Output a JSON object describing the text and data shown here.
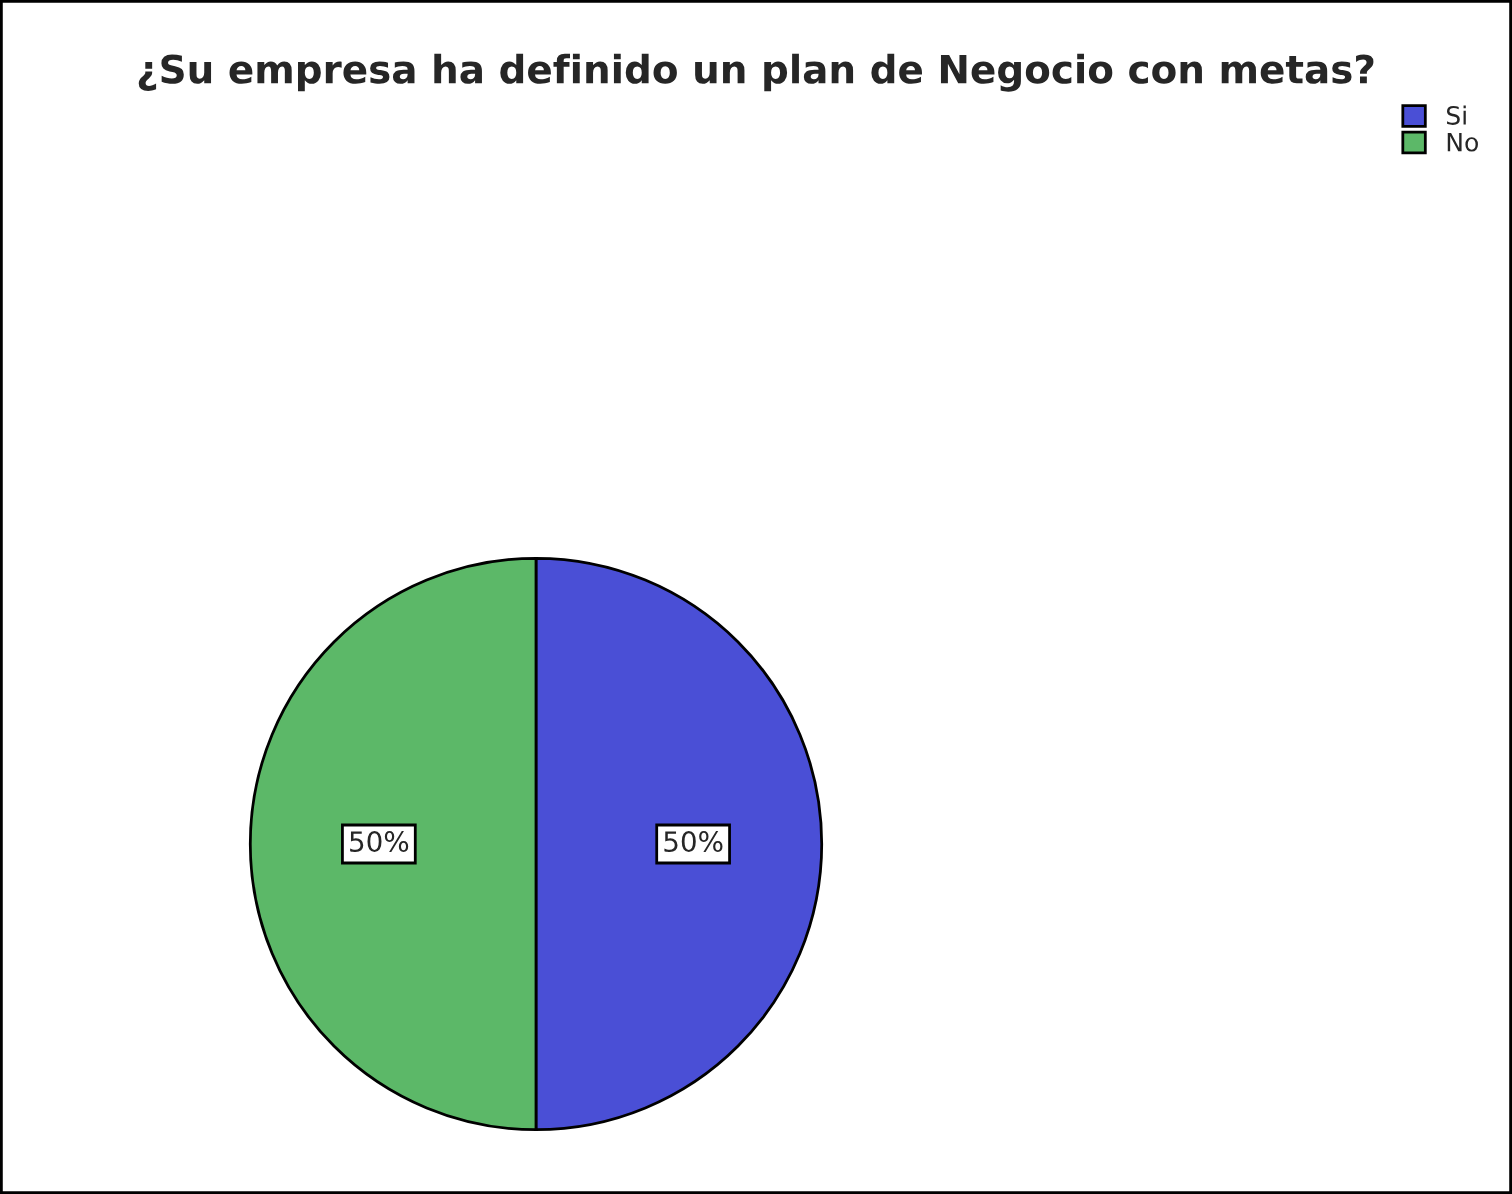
{
  "chart_data": {
    "type": "pie",
    "title": "¿Su empresa ha definido un plan de Negocio con metas?",
    "categories": [
      "Si",
      "No"
    ],
    "values": [
      50,
      50
    ],
    "colors": [
      "#4a4fd6",
      "#5cb868"
    ],
    "value_labels": [
      "50%",
      "50%"
    ],
    "legend": "top right"
  }
}
